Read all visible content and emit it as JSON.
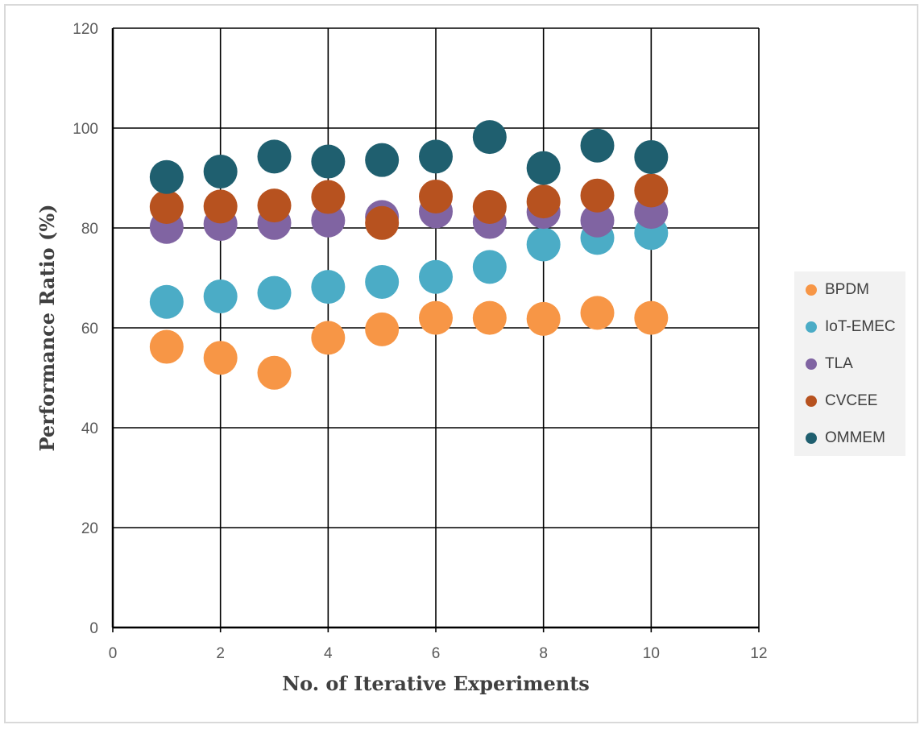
{
  "chart_data": {
    "type": "scatter",
    "title": "",
    "xlabel": "No. of Iterative Experiments",
    "ylabel": "Performance Ratio (%)",
    "xlim": [
      0,
      12
    ],
    "ylim": [
      0,
      120
    ],
    "x_ticks": [
      0,
      2,
      4,
      6,
      8,
      10,
      12
    ],
    "y_ticks": [
      0,
      20,
      40,
      60,
      80,
      100,
      120
    ],
    "grid": true,
    "legend_position": "right",
    "x": [
      1,
      2,
      3,
      4,
      5,
      6,
      7,
      8,
      9,
      10
    ],
    "series": [
      {
        "name": "BPDM",
        "color": "#f79646",
        "values": [
          56.2,
          54.0,
          51.0,
          58.0,
          59.7,
          62.0,
          62.0,
          61.8,
          63.0,
          62.0
        ]
      },
      {
        "name": "IoT-EMEC",
        "color": "#4bacc6",
        "values": [
          65.2,
          66.3,
          67.0,
          68.2,
          69.2,
          70.2,
          72.2,
          76.7,
          78.0,
          79.0
        ]
      },
      {
        "name": "TLA",
        "color": "#8064a2",
        "values": [
          80.2,
          80.8,
          81.0,
          81.5,
          82.2,
          83.3,
          81.2,
          83.2,
          81.5,
          83.2
        ]
      },
      {
        "name": "CVCEE",
        "color": "#b7521f",
        "values": [
          84.2,
          84.3,
          84.5,
          86.2,
          81.0,
          86.3,
          84.2,
          85.3,
          86.5,
          87.5
        ]
      },
      {
        "name": "OMMEM",
        "color": "#1f5f6f",
        "values": [
          90.2,
          91.3,
          94.3,
          93.3,
          93.6,
          94.3,
          98.2,
          92.0,
          96.5,
          94.2
        ]
      }
    ]
  }
}
